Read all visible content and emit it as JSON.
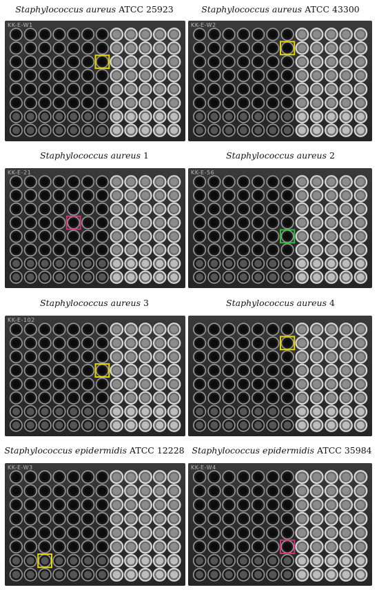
{
  "panels": [
    {
      "species": "Staphylococcus aureus",
      "strain": "ATCC 25923",
      "plate_label": "KK-E-W1",
      "dark_cols": 7,
      "highlight": {
        "row": 2,
        "col": 6,
        "color": "#e5d600"
      }
    },
    {
      "species": "Staphylococcus aureus",
      "strain": "ATCC 43300",
      "plate_label": "KK-E-W2",
      "dark_cols": 7,
      "highlight": {
        "row": 1,
        "col": 6,
        "color": "#e5d600"
      }
    },
    {
      "species": "Staphylococcus aureus",
      "strain": "1",
      "plate_label": "KK-E-21",
      "dark_cols": 7,
      "highlight": {
        "row": 3,
        "col": 4,
        "color": "#d0357a"
      }
    },
    {
      "species": "Staphylococcus aureus",
      "strain": "2",
      "plate_label": "KK-E-56",
      "dark_cols": 7,
      "highlight": {
        "row": 4,
        "col": 6,
        "color": "#2fbf3a"
      }
    },
    {
      "species": "Staphylococcus aureus",
      "strain": " 3",
      "plate_label": "KK-E-102",
      "dark_cols": 7,
      "highlight": {
        "row": 3,
        "col": 6,
        "color": "#e5d600"
      }
    },
    {
      "species": "Staphylococcus aureus",
      "strain": " 4",
      "plate_label": "",
      "dark_cols": 7,
      "highlight": {
        "row": 1,
        "col": 6,
        "color": "#e5d600"
      }
    },
    {
      "species": "Staphylococcus epidermidis",
      "strain": "ATCC 12228",
      "plate_label": "KK-E-W3",
      "dark_cols": 7,
      "highlight": {
        "row": 6,
        "col": 2,
        "color": "#e5d600"
      }
    },
    {
      "species": "Staphylococcus epidermidis",
      "strain": "ATCC 35984",
      "plate_label": "KK-E-W4",
      "dark_cols": 7,
      "highlight": {
        "row": 5,
        "col": 6,
        "color": "#d0357a"
      }
    }
  ]
}
